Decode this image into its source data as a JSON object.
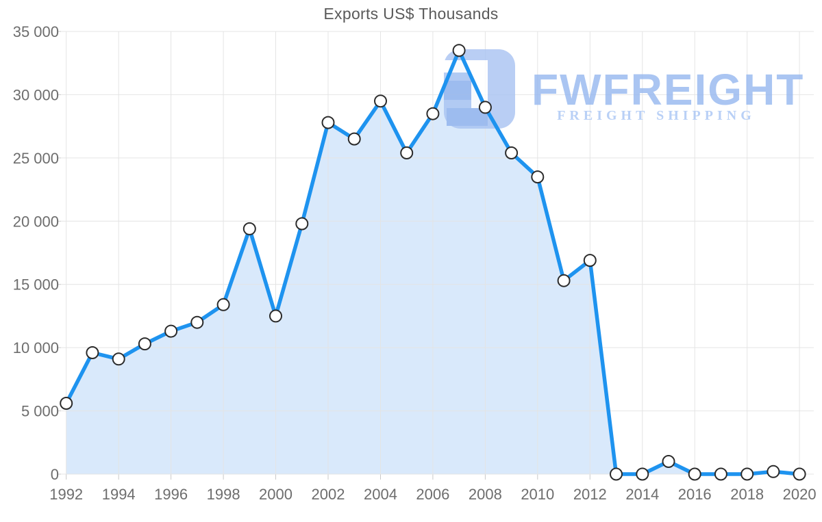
{
  "page": {
    "background": "#ffffff"
  },
  "watermark": {
    "brand": "FWFREIGHT",
    "tagline": "FREIGHT SHIPPING",
    "brand_color": "#95b7f0",
    "tagline_color": "#a8c5f4",
    "icon_base_color": "#a8c3f2",
    "icon_bar_color": "#8fb2ed"
  },
  "chart_data": {
    "type": "area",
    "title": "Exports US$ Thousands",
    "x": [
      1992,
      1993,
      1994,
      1995,
      1996,
      1997,
      1998,
      1999,
      2000,
      2001,
      2002,
      2003,
      2004,
      2005,
      2006,
      2007,
      2008,
      2009,
      2010,
      2011,
      2012,
      2013,
      2014,
      2015,
      2016,
      2017,
      2018,
      2019,
      2020
    ],
    "values": [
      5600,
      9600,
      9100,
      10300,
      11300,
      12000,
      13400,
      19400,
      12500,
      19800,
      27800,
      26500,
      29500,
      25400,
      28500,
      33500,
      29000,
      25400,
      23500,
      15300,
      16900,
      0,
      0,
      1000,
      0,
      0,
      0,
      200,
      0
    ],
    "xlabel": "",
    "ylabel": "",
    "ylim": [
      0,
      35000
    ],
    "grid": true,
    "legend": false,
    "x_tick_labels": [
      "1992",
      "1994",
      "1996",
      "1998",
      "2000",
      "2002",
      "2004",
      "2006",
      "2008",
      "2010",
      "2012",
      "2014",
      "2016",
      "2018",
      "2020"
    ],
    "y_tick_values": [
      0,
      5000,
      10000,
      15000,
      20000,
      25000,
      30000,
      35000
    ],
    "y_tick_labels": [
      "0",
      "5 000",
      "10 000",
      "15 000",
      "20 000",
      "25 000",
      "30 000",
      "35 000"
    ],
    "line_color": "#1e93ef",
    "fill_color": "#d9e9fb",
    "marker_fill": "#ffffff",
    "marker_stroke": "#2b2b2b",
    "grid_color": "#e4e4e4",
    "tick_color": "#c9c9c9",
    "axis_text_color": "#6d6d6d",
    "title_color": "#5a5a5a"
  }
}
